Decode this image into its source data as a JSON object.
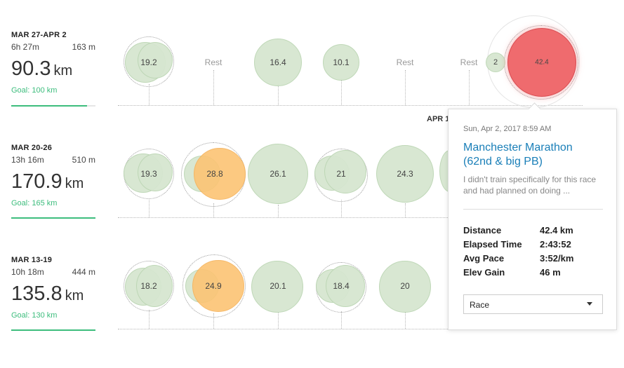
{
  "weeks": [
    {
      "range": "MAR 27-APR 2",
      "time": "6h 27m",
      "elevation": "163 m",
      "total": "90.3",
      "unit": "km",
      "goal": "Goal: 100 km",
      "goal_progress": 0.903
    },
    {
      "range": "MAR 20-26",
      "time": "13h 16m",
      "elevation": "510 m",
      "total": "170.9",
      "unit": "km",
      "goal": "Goal: 165 km",
      "goal_progress": 1.0
    },
    {
      "range": "MAR 13-19",
      "time": "10h 18m",
      "elevation": "444 m",
      "total": "135.8",
      "unit": "km",
      "goal": "Goal: 130 km",
      "goal_progress": 1.0
    }
  ],
  "days": {
    "week1": [
      "19.2",
      "Rest",
      "16.4",
      "10.1",
      "Rest",
      "Rest",
      "2",
      "42.4"
    ],
    "week2": [
      "19.3",
      "28.8",
      "26.1",
      "21",
      "24.3"
    ],
    "week3": [
      "18.2",
      "24.9",
      "20.1",
      "18.4",
      "20"
    ]
  },
  "rest_label": "Rest",
  "date_marker": "APR 1",
  "tooltip": {
    "date": "Sun, Apr 2, 2017 8:59 AM",
    "title": "Manchester Marathon (62nd & big PB)",
    "description": "I didn't train specifically for this race and had planned on doing ...",
    "stats": [
      {
        "label": "Distance",
        "value": "42.4 km"
      },
      {
        "label": "Elapsed Time",
        "value": "2:43:52"
      },
      {
        "label": "Avg Pace",
        "value": "3:52/km"
      },
      {
        "label": "Elev Gain",
        "value": "46 m"
      }
    ],
    "type_select": "Race"
  },
  "colors": {
    "easy": "#d6e6d0",
    "workout": "#fcc474",
    "race": "#ef6b6e",
    "goal": "#3dbd7d",
    "link": "#1a7fb8"
  }
}
